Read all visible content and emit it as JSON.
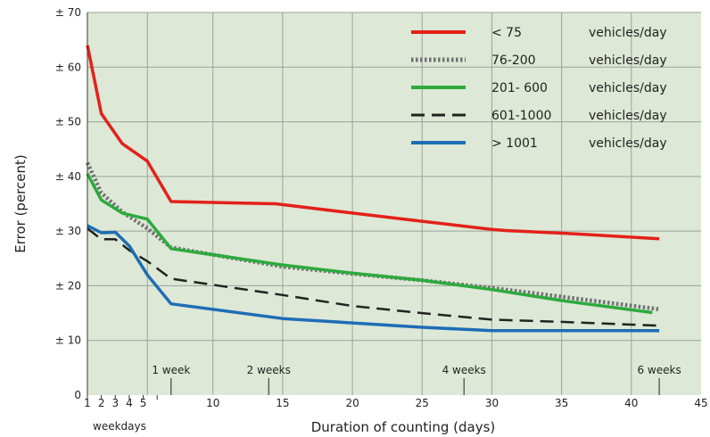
{
  "chart_data": {
    "type": "line",
    "xlabel": "Duration of counting (days)",
    "ylabel": "Error (percent)",
    "xlim": [
      1,
      45
    ],
    "ylim": [
      0,
      70
    ],
    "grid": true,
    "legend_position": "top-right",
    "plot_background": "#dde8d6",
    "y_ticks": [
      {
        "value": 0,
        "label": "0"
      },
      {
        "value": 10,
        "label": "± 10"
      },
      {
        "value": 20,
        "label": "± 20"
      },
      {
        "value": 30,
        "label": "± 30"
      },
      {
        "value": 40,
        "label": "± 40"
      },
      {
        "value": 50,
        "label": "± 50"
      },
      {
        "value": 60,
        "label": "± 60"
      },
      {
        "value": 70,
        "label": "± 70"
      }
    ],
    "x_small_ticks": [
      {
        "value": 1,
        "label": "1"
      },
      {
        "value": 2,
        "label": "2"
      },
      {
        "value": 3,
        "label": "3"
      },
      {
        "value": 4,
        "label": "4"
      },
      {
        "value": 5,
        "label": "5"
      }
    ],
    "x_ticks": [
      {
        "value": 10,
        "label": "10"
      },
      {
        "value": 15,
        "label": "15"
      },
      {
        "value": 20,
        "label": "20"
      },
      {
        "value": 25,
        "label": "25"
      },
      {
        "value": 30,
        "label": "30"
      },
      {
        "value": 35,
        "label": "35"
      },
      {
        "value": 40,
        "label": "40"
      },
      {
        "value": 45,
        "label": "45"
      }
    ],
    "x_extra_gridlines": [
      5.3
    ],
    "x_minor_marks": [
      6
    ],
    "week_annotations": [
      {
        "value": 7,
        "label": "1 week"
      },
      {
        "value": 14,
        "label": "2 weeks"
      },
      {
        "value": 28,
        "label": "4 weeks"
      },
      {
        "value": 42,
        "label": "6 weeks"
      }
    ],
    "weekdays_label": "weekdays",
    "legend_unit": "vehicles/day",
    "series": [
      {
        "name": "< 75",
        "color": "#e32119",
        "dash": "solid",
        "x": [
          1,
          2,
          3.5,
          5.3,
          7,
          14.5,
          20,
          25,
          30,
          31,
          36,
          42
        ],
        "y": [
          64,
          51.5,
          46,
          42.8,
          35.4,
          35,
          33.3,
          31.8,
          30.3,
          30.1,
          29.5,
          28.6
        ]
      },
      {
        "name": "76-200",
        "color": "#707070",
        "dash": "dotted",
        "x": [
          1,
          2,
          3.5,
          5.3,
          7,
          15,
          20,
          25,
          30,
          35,
          42
        ],
        "y": [
          42.5,
          37,
          33.5,
          30.5,
          27,
          23.5,
          22.2,
          21,
          19.6,
          18,
          15.7
        ]
      },
      {
        "name": "201- 600",
        "color": "#2daa3e",
        "dash": "solid",
        "x": [
          1,
          2,
          3.5,
          5.3,
          7,
          15,
          20,
          25,
          30,
          35,
          41.5
        ],
        "y": [
          40.5,
          35.7,
          33.3,
          32.2,
          26.8,
          23.8,
          22.3,
          21,
          19.3,
          17.3,
          15.1
        ]
      },
      {
        "name": "601-1000",
        "color": "#222222",
        "dash": "dashed",
        "x": [
          1,
          2,
          3,
          4,
          5.3,
          7,
          15,
          20,
          25,
          30,
          35,
          42
        ],
        "y": [
          30.5,
          28.5,
          28.5,
          26.5,
          24.5,
          21.3,
          18.3,
          16.3,
          15,
          13.8,
          13.4,
          12.7
        ]
      },
      {
        "name": "> 1001",
        "color": "#1e6db5",
        "dash": "solid",
        "x": [
          1,
          2,
          3,
          4,
          5.3,
          7,
          15,
          20,
          25,
          30,
          35,
          42
        ],
        "y": [
          31,
          29.7,
          29.8,
          27.3,
          22,
          16.7,
          14,
          13.2,
          12.4,
          11.8,
          11.8,
          11.8
        ]
      }
    ]
  }
}
